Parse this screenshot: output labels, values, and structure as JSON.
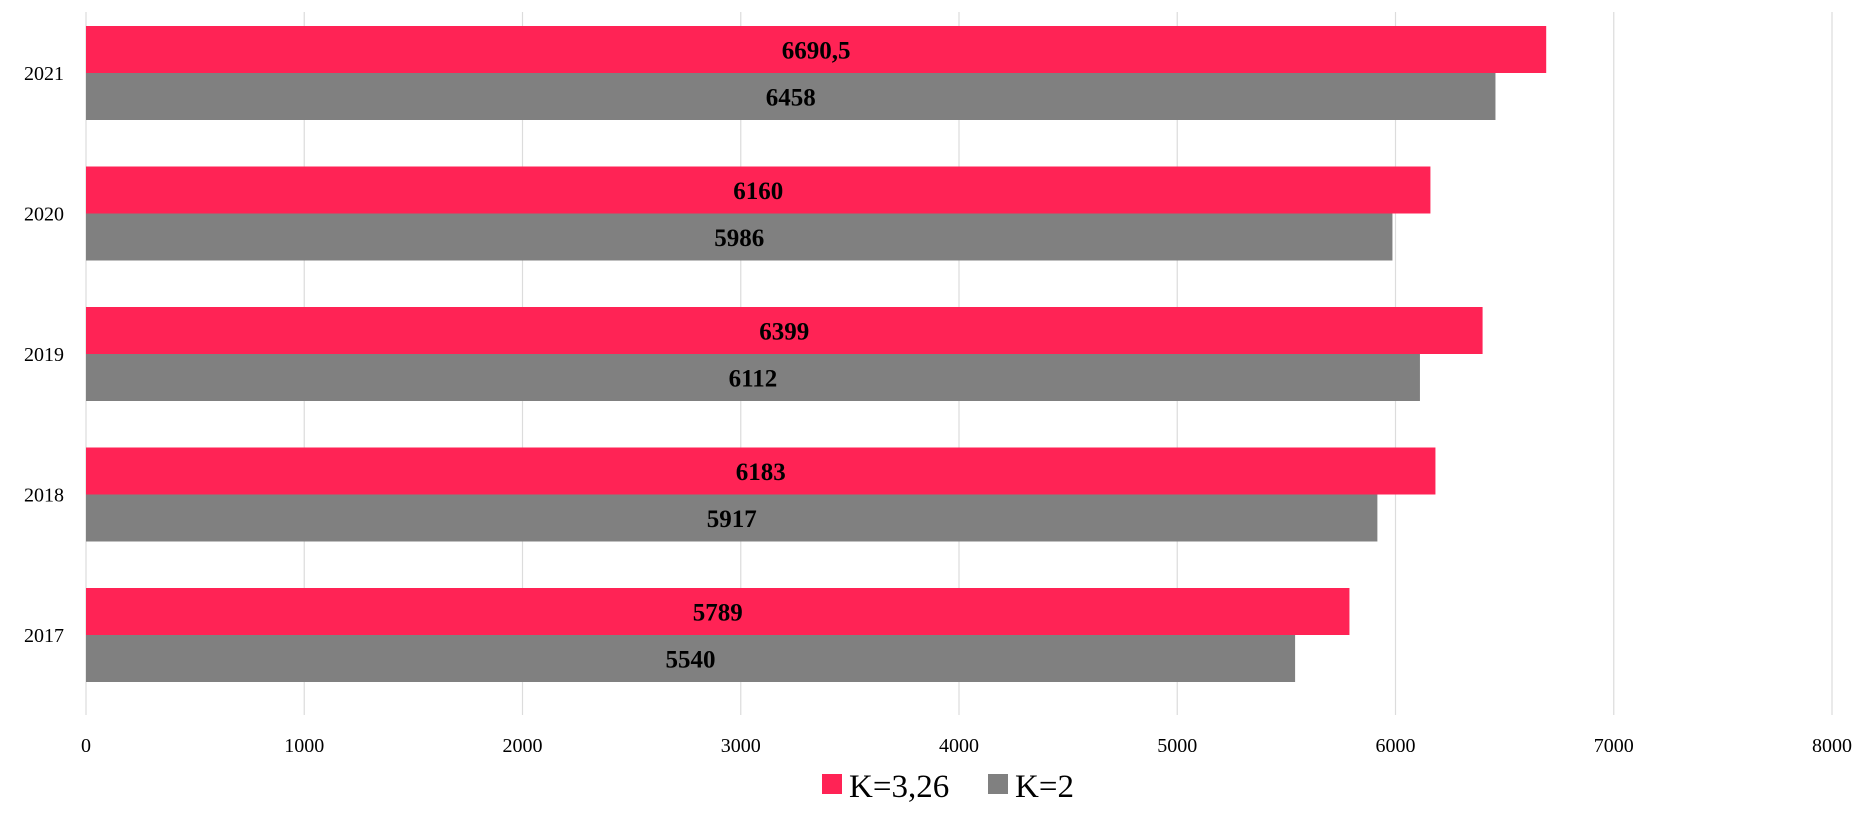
{
  "chart_data": {
    "type": "bar",
    "orientation": "horizontal",
    "categories": [
      "2017",
      "2018",
      "2019",
      "2020",
      "2021"
    ],
    "series": [
      {
        "name": "K=3,26",
        "color": "#ff2355",
        "values": [
          5789,
          6183,
          6399,
          6160,
          6690.5
        ],
        "labels": [
          "5789",
          "6183",
          "6399",
          "6160",
          "6690,5"
        ]
      },
      {
        "name": "K=2",
        "color": "#808080",
        "values": [
          5540,
          5917,
          6112,
          5986,
          6458
        ],
        "labels": [
          "5540",
          "5917",
          "6112",
          "5986",
          "6458"
        ]
      }
    ],
    "xlim": [
      0,
      8000
    ],
    "xticks": [
      0,
      1000,
      2000,
      3000,
      4000,
      5000,
      6000,
      7000,
      8000
    ],
    "grid": "vertical",
    "legend_position": "bottom-center"
  }
}
